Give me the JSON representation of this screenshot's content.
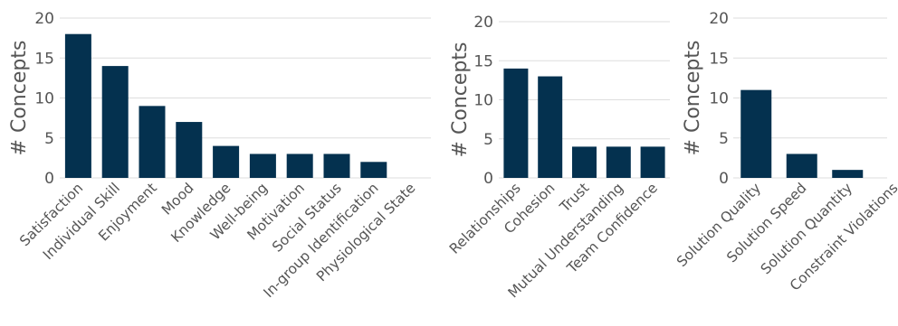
{
  "chart_data": [
    {
      "type": "bar",
      "ylabel": "# Concepts",
      "ylim": [
        0,
        20
      ],
      "yticks": [
        0,
        5,
        10,
        15,
        20
      ],
      "grid": true,
      "color": "#04314f",
      "categories": [
        "Satisfaction",
        "Individual Skill",
        "Enjoyment",
        "Mood",
        "Knowledge",
        "Well-being",
        "Motivation",
        "Social Status",
        "In-group Identification",
        "Physiological State"
      ],
      "values": [
        18,
        14,
        9,
        7,
        4,
        3,
        3,
        3,
        2,
        0
      ]
    },
    {
      "type": "bar",
      "ylabel": "# Concepts",
      "ylim": [
        0,
        20
      ],
      "yticks": [
        0,
        5,
        10,
        15,
        20
      ],
      "grid": true,
      "color": "#04314f",
      "categories": [
        "Relationships",
        "Cohesion",
        "Trust",
        "Mutual Understanding",
        "Team Confidence"
      ],
      "values": [
        14,
        13,
        4,
        4,
        4
      ]
    },
    {
      "type": "bar",
      "ylabel": "# Concepts",
      "ylim": [
        0,
        20
      ],
      "yticks": [
        0,
        5,
        10,
        15,
        20
      ],
      "grid": true,
      "color": "#04314f",
      "categories": [
        "Solution Quality",
        "Solution Speed",
        "Solution Quantity",
        "Constraint Violations"
      ],
      "values": [
        11,
        3,
        1,
        0
      ]
    }
  ]
}
